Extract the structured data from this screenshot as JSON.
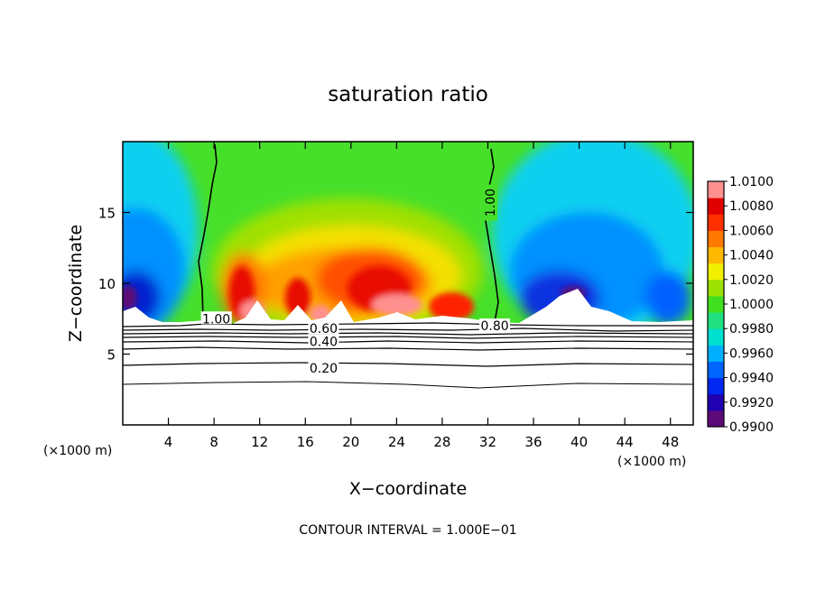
{
  "chart_data": {
    "type": "heatmap",
    "title": "saturation ratio",
    "xlabel": "X−coordinate",
    "ylabel": "Z−coordinate",
    "x_unit_left": "(×1000 m)",
    "x_unit_right": "(×1000 m)",
    "footer": "CONTOUR INTERVAL = 1.000E−01",
    "xlim": [
      0,
      50
    ],
    "ylim": [
      0,
      20
    ],
    "x_ticks": [
      4,
      8,
      12,
      16,
      20,
      24,
      28,
      32,
      36,
      40,
      44,
      48
    ],
    "x_tick_labels": [
      "4",
      "8",
      "12",
      "16",
      "20",
      "24",
      "28",
      "32",
      "36",
      "40",
      "44",
      "48"
    ],
    "y_ticks": [
      5,
      10,
      15
    ],
    "y_tick_labels": [
      "5",
      "10",
      "15"
    ],
    "colorbar": {
      "min": 0.99,
      "max": 1.01,
      "tick_values": [
        1.01,
        1.008,
        1.006,
        1.004,
        1.002,
        1.0,
        0.998,
        0.996,
        0.994,
        0.992,
        0.99
      ],
      "tick_labels": [
        "1.0100",
        "1.0080",
        "1.0060",
        "1.0040",
        "1.0020",
        "1.0000",
        "0.9980",
        "0.9960",
        "0.9940",
        "0.9920",
        "0.9900"
      ],
      "colors": [
        "#5b0a78",
        "#2000b0",
        "#0028f0",
        "#0066ff",
        "#00b0ff",
        "#00e0d0",
        "#20e080",
        "#40e020",
        "#9ae000",
        "#f0f000",
        "#ffb800",
        "#ff7800",
        "#ff3000",
        "#e00000",
        "#ff9090"
      ]
    },
    "contour_labels": [
      {
        "text": "1.00",
        "x": 8.2,
        "z": 7.5
      },
      {
        "text": "1.00",
        "x": 32.2,
        "z": 15.7
      },
      {
        "text": "0.60",
        "x": 17.6,
        "z": 6.8
      },
      {
        "text": "0.40",
        "x": 17.6,
        "z": 5.9
      },
      {
        "text": "0.20",
        "x": 17.6,
        "z": 4.0
      },
      {
        "text": "0.80",
        "x": 32.6,
        "z": 7.0
      }
    ]
  }
}
